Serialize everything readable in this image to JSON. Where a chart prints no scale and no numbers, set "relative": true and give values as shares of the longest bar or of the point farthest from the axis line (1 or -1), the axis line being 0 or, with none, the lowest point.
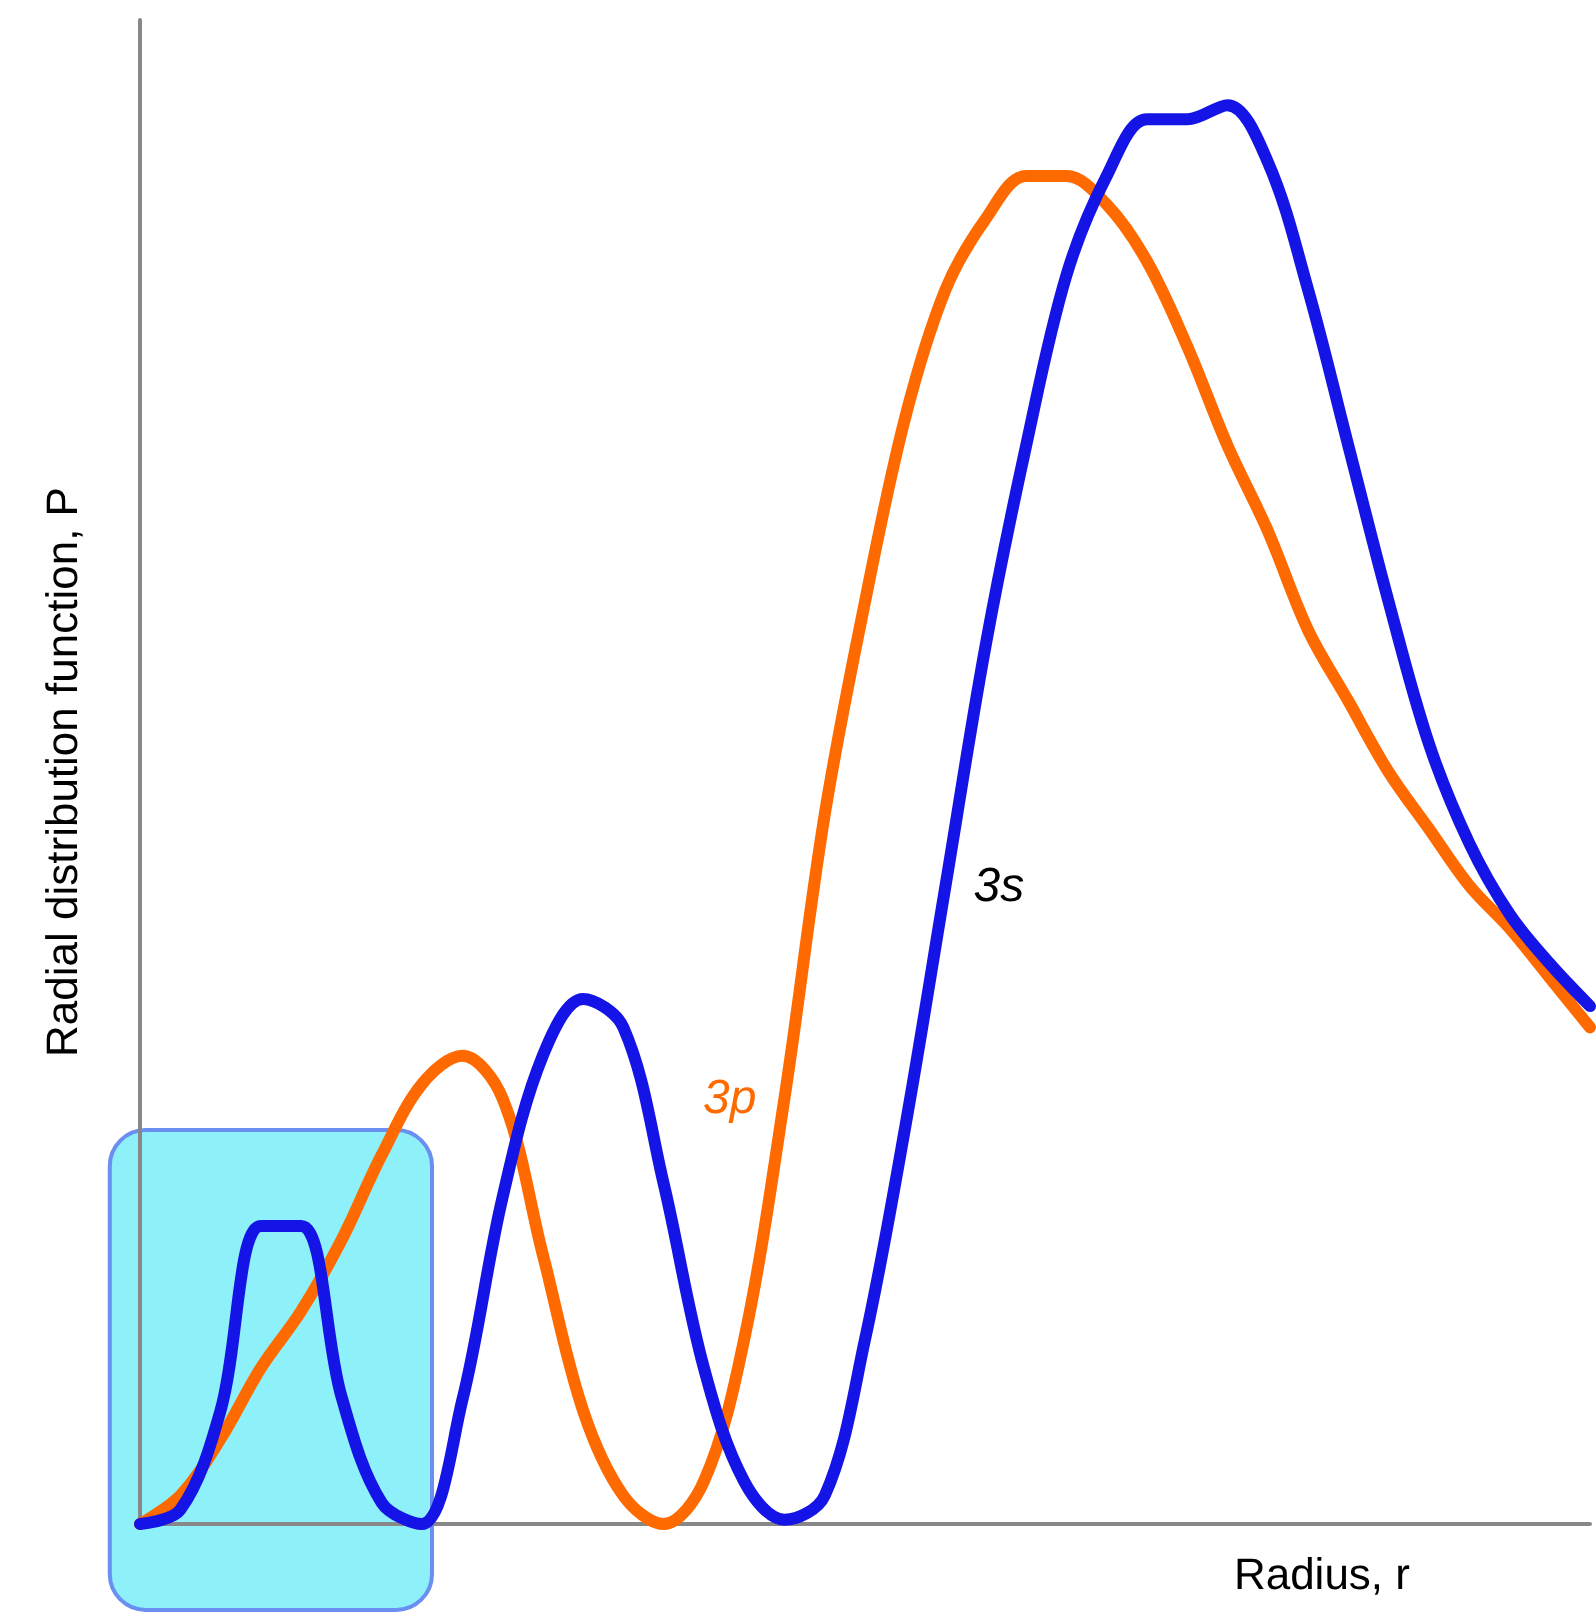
{
  "chart_data": {
    "type": "line",
    "relative": true,
    "xlabel": "Radius, r",
    "ylabel": "Radial distribution function, P",
    "marker": "none",
    "grid": false,
    "legend": false,
    "categories": [
      null,
      null,
      null,
      null,
      null,
      null,
      null,
      null,
      null,
      null,
      null,
      null,
      null,
      null,
      null,
      null,
      null,
      null,
      null,
      null,
      null,
      null,
      null,
      null,
      null,
      null,
      null,
      null,
      null,
      null,
      null,
      null,
      null,
      null,
      null,
      null,
      null
    ],
    "series": [
      {
        "name": "3p",
        "color": "#ff6a00",
        "values": [
          0,
          0.02,
          0.06,
          0.11,
          0.15,
          0.2,
          0.26,
          0.31,
          0.33,
          0.3,
          0.19,
          0.08,
          0.02,
          0,
          0.03,
          0.13,
          0.3,
          0.5,
          0.65,
          0.78,
          0.87,
          0.92,
          0.95,
          0.95,
          0.93,
          0.89,
          0.83,
          0.76,
          0.7,
          0.63,
          0.58,
          0.53,
          0.49,
          0.45,
          0.42,
          0.385,
          0.35
        ]
      },
      {
        "name": "3s",
        "color": "#1414e6",
        "values": [
          0,
          0.01,
          0.08,
          0.21,
          0.21,
          0.09,
          0.015,
          0,
          0.087,
          0.23,
          0.33,
          0.37,
          0.35,
          0.24,
          0.11,
          0.03,
          0.003,
          0.02,
          0.13,
          0.28,
          0.45,
          0.62,
          0.76,
          0.88,
          0.95,
          0.99,
          0.99,
          1.0,
          0.96,
          0.87,
          0.76,
          0.65,
          0.55,
          0.48,
          0.43,
          0.395,
          0.365
        ]
      }
    ]
  }
}
